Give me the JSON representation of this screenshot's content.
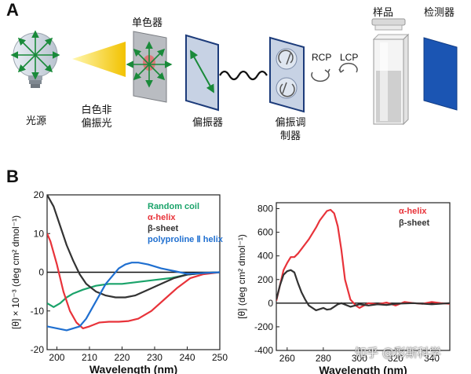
{
  "panels": {
    "a": "A",
    "b": "B"
  },
  "schematic": {
    "light_source": "光源",
    "white_light_line1": "白色非",
    "white_light_line2": "偏振光",
    "monochromator": "单色器",
    "polarizer": "偏振器",
    "modulator_line1": "偏振调",
    "modulator_line2": "制器",
    "rcp": "RCP",
    "lcp": "LCP",
    "sample": "样品",
    "detector": "检测器"
  },
  "watermark": "知乎 @彩斯科学",
  "colors": {
    "green": "#1aa36a",
    "red": "#e8333a",
    "black": "#333333",
    "blue": "#1f6fd0",
    "detector": "#1b55b3"
  },
  "chart_data": [
    {
      "type": "line",
      "xlabel": "Wavelength (nm)",
      "ylabel": "[θ] × 10⁻³ (deg cm² dmol⁻¹)",
      "xlim": [
        197,
        250
      ],
      "ylim": [
        -20,
        20
      ],
      "xticks": [
        200,
        210,
        220,
        230,
        240,
        250
      ],
      "yticks": [
        20,
        10,
        0,
        -10,
        -20
      ],
      "legend_position": "top-right",
      "series": [
        {
          "name": "Random coil",
          "color": "#1aa36a",
          "x": [
            197,
            199,
            201,
            203,
            205,
            208,
            212,
            216,
            220,
            225,
            230,
            235,
            240,
            245,
            250
          ],
          "y": [
            -8,
            -9,
            -8,
            -6.5,
            -5.5,
            -4.5,
            -3.5,
            -3,
            -3,
            -2.5,
            -2,
            -1.5,
            -0.6,
            -0.2,
            0
          ]
        },
        {
          "name": "α-helix",
          "color": "#e8333a",
          "x": [
            197,
            198,
            200,
            202,
            204,
            206,
            208,
            210,
            213,
            216,
            219,
            222,
            225,
            229,
            233,
            237,
            241,
            245,
            250
          ],
          "y": [
            10,
            8,
            2,
            -5,
            -10,
            -13,
            -14.5,
            -14,
            -13,
            -12.8,
            -12.8,
            -12.6,
            -12,
            -10,
            -7,
            -4,
            -1.5,
            -0.5,
            0
          ]
        },
        {
          "name": "β-sheet",
          "color": "#333333",
          "x": [
            197,
            199,
            201,
            203,
            205,
            207,
            209,
            212,
            215,
            218,
            221,
            224,
            228,
            232,
            236,
            240,
            245,
            250
          ],
          "y": [
            20,
            17,
            12,
            7,
            3,
            -0.5,
            -3,
            -5,
            -6,
            -6.5,
            -6.5,
            -6,
            -4.5,
            -3,
            -1.5,
            -0.6,
            -0.2,
            0
          ]
        },
        {
          "name": "polyproline Ⅱ helix",
          "color": "#1f6fd0",
          "x": [
            197,
            200,
            203,
            205,
            207,
            209,
            211,
            213,
            215,
            217,
            219,
            221,
            223,
            225,
            228,
            232,
            236,
            240,
            245,
            250
          ],
          "y": [
            -14,
            -14.5,
            -15,
            -14.5,
            -14,
            -12,
            -9,
            -6,
            -3,
            -1,
            1,
            2,
            2.5,
            2.5,
            2,
            1,
            0.3,
            -0.4,
            -0.2,
            0
          ]
        }
      ]
    },
    {
      "type": "line",
      "xlabel": "Wavelength (nm)",
      "ylabel": "[θ] (deg cm² dmol⁻¹)",
      "xlim": [
        254,
        350
      ],
      "ylim": [
        -400,
        850
      ],
      "xticks": [
        260,
        280,
        300,
        320,
        340
      ],
      "yticks": [
        800,
        600,
        400,
        200,
        0,
        -200,
        -400
      ],
      "legend_position": "top-right",
      "series": [
        {
          "name": "α-helix",
          "color": "#e8333a",
          "x": [
            254,
            256,
            258,
            260,
            262,
            264,
            266,
            268,
            270,
            272,
            274,
            276,
            278,
            280,
            282,
            284,
            286,
            288,
            290,
            292,
            295,
            298,
            300,
            305,
            310,
            315,
            320,
            325,
            330,
            335,
            340,
            345,
            350
          ],
          "y": [
            20,
            150,
            280,
            340,
            390,
            390,
            420,
            460,
            500,
            540,
            590,
            640,
            700,
            740,
            780,
            790,
            760,
            650,
            450,
            200,
            30,
            -20,
            -40,
            0,
            -10,
            5,
            -20,
            10,
            0,
            -5,
            10,
            0,
            -5
          ]
        },
        {
          "name": "β-sheet",
          "color": "#333333",
          "x": [
            254,
            256,
            258,
            260,
            262,
            264,
            266,
            268,
            270,
            272,
            274,
            276,
            278,
            280,
            282,
            284,
            286,
            288,
            290,
            295,
            300,
            305,
            310,
            315,
            320,
            330,
            340,
            350
          ],
          "y": [
            30,
            150,
            240,
            270,
            280,
            260,
            170,
            90,
            30,
            -20,
            -40,
            -60,
            -50,
            -40,
            -55,
            -50,
            -30,
            -10,
            0,
            -30,
            -10,
            -20,
            -10,
            -15,
            -5,
            0,
            -10,
            0
          ]
        }
      ]
    }
  ]
}
